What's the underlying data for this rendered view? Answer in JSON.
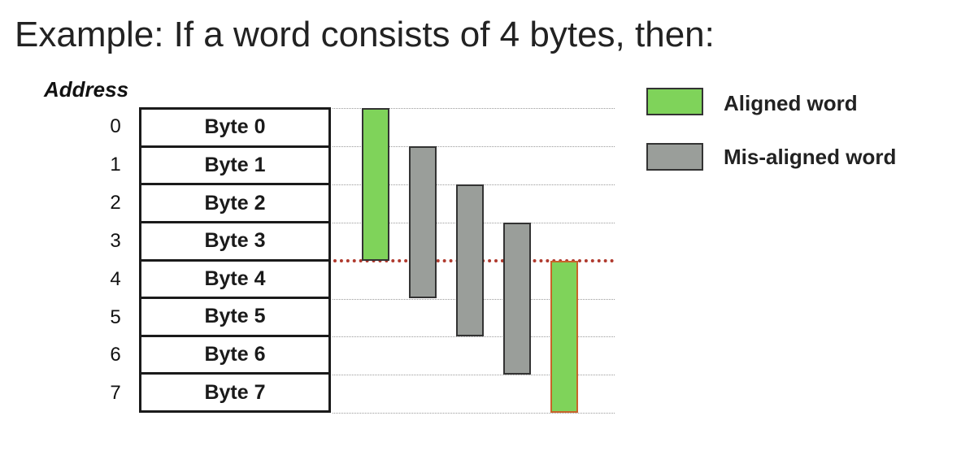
{
  "title": "Example: If a word consists of 4 bytes, then:",
  "address_header": "Address",
  "addresses": [
    "0",
    "1",
    "2",
    "3",
    "4",
    "5",
    "6",
    "7"
  ],
  "bytes": [
    "Byte 0",
    "Byte 1",
    "Byte 2",
    "Byte 3",
    "Byte 4",
    "Byte 5",
    "Byte 6",
    "Byte 7"
  ],
  "legend": {
    "aligned": {
      "label": "Aligned word",
      "color": "#7fd35a"
    },
    "misaligned": {
      "label": "Mis-aligned word",
      "color": "#9a9e9a"
    }
  },
  "word_size_bytes": 4,
  "words": [
    {
      "start": 0,
      "aligned": true
    },
    {
      "start": 1,
      "aligned": false
    },
    {
      "start": 2,
      "aligned": false
    },
    {
      "start": 3,
      "aligned": false
    },
    {
      "start": 4,
      "aligned": true
    }
  ],
  "boundary_color": "#b03a2e"
}
